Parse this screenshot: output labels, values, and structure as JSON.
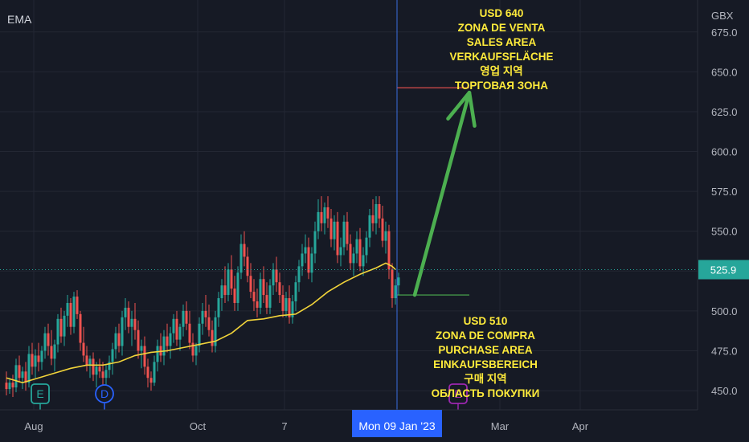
{
  "header": {
    "indicator_label": "EMA",
    "currency_label": "GBX"
  },
  "chart_data": {
    "type": "candlestick",
    "y_axis": {
      "ticks": [
        "675.0",
        "650.0",
        "625.0",
        "600.0",
        "575.0",
        "550.0",
        "525.0",
        "500.0",
        "475.0",
        "450.0"
      ],
      "range": [
        445,
        690
      ],
      "position": "right"
    },
    "x_axis": {
      "ticks": [
        {
          "label": "Aug",
          "idx": 1
        },
        {
          "label": "Oct",
          "idx": 52
        },
        {
          "label": "7",
          "idx": 79
        },
        {
          "label": "Mar",
          "idx": 146
        },
        {
          "label": "Apr",
          "idx": 171
        }
      ]
    },
    "price_label": "525.9",
    "price_value": 525.9,
    "crosshair_label": "Mon 09 Jan '23",
    "crosshair_idx": 121.5,
    "colors": {
      "up": "#26a69a",
      "down": "#ef5350",
      "ema": "#f2d43a",
      "target": "#4caf50",
      "crosshair": "#3b6fe0",
      "annotation": "#ffeb3b"
    },
    "candles": [
      [
        455,
        462,
        447,
        451
      ],
      [
        451,
        458,
        448,
        455
      ],
      [
        455,
        460,
        446,
        452
      ],
      [
        452,
        470,
        449,
        466
      ],
      [
        466,
        472,
        455,
        458
      ],
      [
        458,
        465,
        451,
        462
      ],
      [
        462,
        468,
        450,
        455
      ],
      [
        455,
        478,
        452,
        473
      ],
      [
        473,
        480,
        460,
        465
      ],
      [
        465,
        476,
        458,
        472
      ],
      [
        472,
        480,
        462,
        468
      ],
      [
        468,
        478,
        463,
        475
      ],
      [
        475,
        490,
        470,
        486
      ],
      [
        486,
        492,
        472,
        478
      ],
      [
        478,
        488,
        466,
        470
      ],
      [
        470,
        482,
        462,
        479
      ],
      [
        479,
        498,
        474,
        495
      ],
      [
        495,
        502,
        480,
        484
      ],
      [
        484,
        500,
        478,
        497
      ],
      [
        497,
        510,
        490,
        505
      ],
      [
        505,
        508,
        485,
        490
      ],
      [
        490,
        512,
        486,
        509
      ],
      [
        509,
        513,
        495,
        498
      ],
      [
        498,
        500,
        475,
        480
      ],
      [
        480,
        490,
        468,
        472
      ],
      [
        472,
        478,
        462,
        466
      ],
      [
        466,
        472,
        458,
        470
      ],
      [
        470,
        474,
        456,
        460
      ],
      [
        460,
        468,
        452,
        465
      ],
      [
        465,
        470,
        458,
        462
      ],
      [
        462,
        468,
        452,
        458
      ],
      [
        458,
        466,
        450,
        463
      ],
      [
        463,
        472,
        458,
        468
      ],
      [
        468,
        480,
        460,
        476
      ],
      [
        476,
        490,
        470,
        486
      ],
      [
        486,
        492,
        474,
        478
      ],
      [
        478,
        500,
        472,
        496
      ],
      [
        496,
        508,
        488,
        502
      ],
      [
        502,
        506,
        486,
        490
      ],
      [
        490,
        500,
        478,
        495
      ],
      [
        495,
        505,
        482,
        488
      ],
      [
        488,
        494,
        470,
        475
      ],
      [
        475,
        482,
        464,
        478
      ],
      [
        478,
        484,
        460,
        465
      ],
      [
        465,
        470,
        452,
        458
      ],
      [
        458,
        462,
        450,
        455
      ],
      [
        455,
        472,
        453,
        468
      ],
      [
        468,
        482,
        462,
        478
      ],
      [
        478,
        486,
        468,
        472
      ],
      [
        472,
        488,
        466,
        484
      ],
      [
        484,
        492,
        474,
        478
      ],
      [
        478,
        490,
        470,
        486
      ],
      [
        486,
        498,
        480,
        495
      ],
      [
        495,
        500,
        478,
        482
      ],
      [
        482,
        492,
        475,
        490
      ],
      [
        490,
        504,
        484,
        500
      ],
      [
        500,
        506,
        488,
        492
      ],
      [
        492,
        500,
        476,
        480
      ],
      [
        480,
        486,
        468,
        472
      ],
      [
        472,
        480,
        466,
        478
      ],
      [
        478,
        496,
        474,
        492
      ],
      [
        492,
        505,
        485,
        500
      ],
      [
        500,
        510,
        490,
        496
      ],
      [
        496,
        504,
        484,
        488
      ],
      [
        488,
        494,
        474,
        478
      ],
      [
        478,
        500,
        474,
        496
      ],
      [
        496,
        512,
        490,
        508
      ],
      [
        508,
        520,
        500,
        516
      ],
      [
        516,
        528,
        505,
        510
      ],
      [
        510,
        530,
        506,
        526
      ],
      [
        526,
        535,
        510,
        514
      ],
      [
        514,
        522,
        500,
        505
      ],
      [
        505,
        528,
        500,
        524
      ],
      [
        524,
        548,
        520,
        542
      ],
      [
        542,
        550,
        528,
        534
      ],
      [
        534,
        540,
        518,
        522
      ],
      [
        522,
        530,
        508,
        512
      ],
      [
        512,
        520,
        500,
        506
      ],
      [
        506,
        514,
        496,
        502
      ],
      [
        502,
        524,
        498,
        520
      ],
      [
        520,
        528,
        505,
        510
      ],
      [
        510,
        518,
        498,
        502
      ],
      [
        502,
        520,
        498,
        516
      ],
      [
        516,
        530,
        510,
        526
      ],
      [
        526,
        534,
        512,
        518
      ],
      [
        518,
        524,
        505,
        510
      ],
      [
        510,
        516,
        496,
        500
      ],
      [
        500,
        512,
        496,
        508
      ],
      [
        508,
        516,
        492,
        496
      ],
      [
        496,
        510,
        492,
        506
      ],
      [
        506,
        522,
        500,
        518
      ],
      [
        518,
        532,
        512,
        528
      ],
      [
        528,
        542,
        522,
        536
      ],
      [
        536,
        548,
        530,
        540
      ],
      [
        540,
        546,
        520,
        524
      ],
      [
        524,
        540,
        518,
        536
      ],
      [
        536,
        556,
        530,
        550
      ],
      [
        550,
        570,
        545,
        562
      ],
      [
        562,
        572,
        550,
        555
      ],
      [
        555,
        568,
        548,
        565
      ],
      [
        565,
        572,
        552,
        558
      ],
      [
        558,
        564,
        540,
        545
      ],
      [
        545,
        560,
        538,
        556
      ],
      [
        556,
        562,
        530,
        535
      ],
      [
        535,
        546,
        528,
        540
      ],
      [
        540,
        560,
        535,
        556
      ],
      [
        556,
        562,
        538,
        542
      ],
      [
        542,
        548,
        526,
        530
      ],
      [
        530,
        540,
        522,
        536
      ],
      [
        536,
        550,
        530,
        545
      ],
      [
        545,
        552,
        525,
        528
      ],
      [
        528,
        540,
        522,
        535
      ],
      [
        535,
        550,
        530,
        546
      ],
      [
        546,
        564,
        540,
        560
      ],
      [
        560,
        570,
        550,
        555
      ],
      [
        555,
        572,
        548,
        567
      ],
      [
        567,
        572,
        552,
        558
      ],
      [
        558,
        566,
        540,
        544
      ],
      [
        544,
        556,
        536,
        550
      ],
      [
        550,
        554,
        520,
        526
      ],
      [
        526,
        530,
        502,
        508
      ],
      [
        508,
        520,
        504,
        516
      ],
      [
        516,
        524,
        510,
        521
      ]
    ],
    "ema": [
      [
        0,
        458
      ],
      [
        5,
        455
      ],
      [
        10,
        458
      ],
      [
        15,
        461
      ],
      [
        20,
        464
      ],
      [
        25,
        466
      ],
      [
        30,
        466
      ],
      [
        35,
        468
      ],
      [
        40,
        472
      ],
      [
        45,
        474
      ],
      [
        50,
        475
      ],
      [
        55,
        477
      ],
      [
        60,
        479
      ],
      [
        65,
        481
      ],
      [
        70,
        486
      ],
      [
        75,
        494
      ],
      [
        80,
        495
      ],
      [
        85,
        497
      ],
      [
        90,
        498
      ],
      [
        95,
        504
      ],
      [
        100,
        512
      ],
      [
        105,
        518
      ],
      [
        110,
        523
      ],
      [
        115,
        527
      ],
      [
        118,
        530
      ],
      [
        120,
        528
      ],
      [
        121,
        526
      ]
    ],
    "levels": [
      {
        "name": "sell-level",
        "value": 640,
        "color": "#ef5350",
        "from_idx": 121.5,
        "to_idx": 144
      },
      {
        "name": "buy-level",
        "value": 510,
        "color": "#4caf50",
        "from_idx": 121.5,
        "to_idx": 144
      }
    ],
    "arrow": {
      "from": [
        127,
        510
      ],
      "to": [
        144,
        637
      ]
    },
    "events": [
      {
        "label": "E",
        "idx": 10,
        "color": "#26a69a",
        "shape": "square"
      },
      {
        "label": "D",
        "idx": 30,
        "color": "#2962ff",
        "shape": "circle"
      },
      {
        "label": "E",
        "idx": 140,
        "color": "#9c27b0",
        "shape": "square"
      }
    ],
    "annotations": [
      {
        "name": "sell-zone-text",
        "idx": 154,
        "top": 8,
        "lines": [
          "USD 640",
          "ZONA DE VENTA",
          "SALES AREA",
          "VERKAUFSFLÄCHE",
          "영업 지역",
          "ТОРГОВАЯ ЗОНА"
        ]
      },
      {
        "name": "buy-zone-text",
        "idx": 149,
        "top": 391,
        "lines": [
          "USD 510",
          "ZONA DE COMPRA",
          "PURCHASE AREA",
          "EINKAUFSBEREICH",
          "구매 지역",
          "ОБЛАСТЬ ПОКУПКИ"
        ]
      }
    ]
  }
}
